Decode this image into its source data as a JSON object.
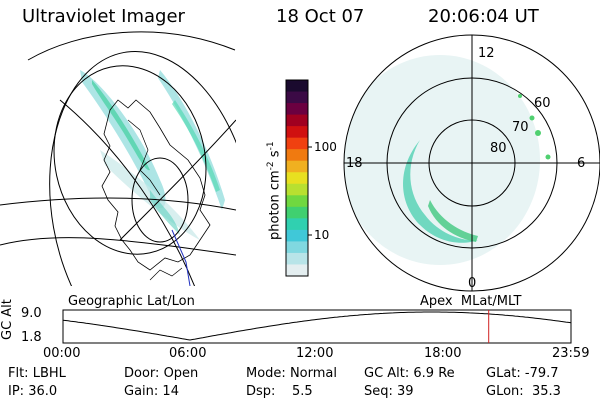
{
  "header": {
    "title": "Ultraviolet Imager",
    "date": "18 Oct 07",
    "time": "20:06:04 UT"
  },
  "colorbar": {
    "label": "photon cm",
    "exponent1": "-2",
    "unit2": "s",
    "exponent2": "-1",
    "ticks": [
      "100",
      "10"
    ],
    "colors": [
      "#1a0a2e",
      "#3b0a45",
      "#6b0040",
      "#a00020",
      "#d01010",
      "#f04010",
      "#f07a10",
      "#f0b020",
      "#e8e020",
      "#b8e030",
      "#70d840",
      "#40d070",
      "#30d0b0",
      "#40c8d8",
      "#80d8e0",
      "#b8e4e8",
      "#e4eef0"
    ]
  },
  "left_panel": {
    "label": "Geographic Lat/Lon"
  },
  "right_panel": {
    "label": "Apex  MLat/MLT",
    "mlt_labels": {
      "top": "12",
      "left": "18",
      "right": "6",
      "bottom": "0"
    },
    "lat_labels": [
      "60",
      "70",
      "80"
    ]
  },
  "timeline": {
    "ylabel": "GC Alt",
    "yticks": [
      "9.0",
      "1.8"
    ],
    "xticks": [
      "00:00",
      "06:00",
      "12:00",
      "18:00",
      "23:59"
    ],
    "current_marker_fraction": 0.838
  },
  "status": {
    "row1": [
      {
        "key": "Flt:",
        "value": "LBHL"
      },
      {
        "key": "Door:",
        "value": "Open"
      },
      {
        "key": "Mode:",
        "value": "Normal"
      },
      {
        "key": "GC Alt:",
        "value": "6.9 Re"
      },
      {
        "key": "GLat:",
        "value": "-79.7"
      }
    ],
    "row2": [
      {
        "key": "IP:",
        "value": "36.0"
      },
      {
        "key": "Gain:",
        "value": "14"
      },
      {
        "key": "Dsp:",
        "value": "5.5"
      },
      {
        "key": "Seq:",
        "value": "39"
      },
      {
        "key": "GLon:",
        "value": "35.3"
      }
    ]
  }
}
